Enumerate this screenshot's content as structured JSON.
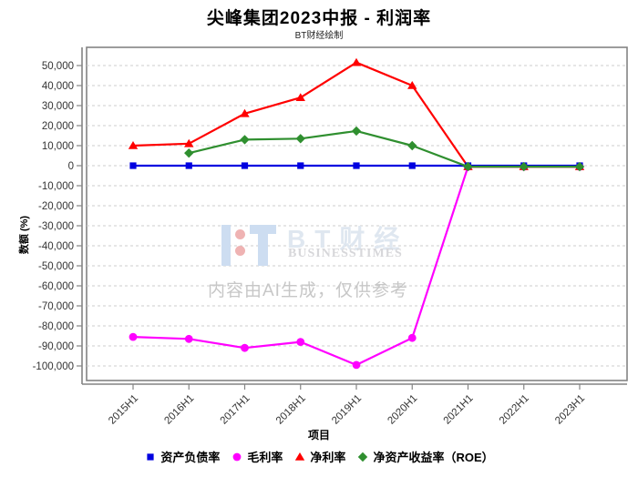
{
  "header": {
    "title": "尖峰集团2023中报 - 利润率",
    "subtitle": "BT财经绘制"
  },
  "watermark": {
    "brand": "BT财经",
    "brand_sub": "BUSINESSTIMES",
    "disclaimer": "内容由AI生成，仅供参考",
    "logo_blue": "#cdddf1",
    "logo_red": "#efb3b3",
    "brand_color": "#dfe7f0",
    "brand_sub_color": "#d7d7da",
    "disclaimer_color": "#c7c7c7"
  },
  "chart_data": {
    "type": "line",
    "title": "尖峰集团2023中报 - 利润率",
    "subtitle": "BT财经绘制",
    "xlabel": "项目",
    "ylabel": "数额 (%)",
    "categories": [
      "2015H1",
      "2016H1",
      "2017H1",
      "2018H1",
      "2019H1",
      "2020H1",
      "2021H1",
      "2022H1",
      "2023H1"
    ],
    "series": [
      {
        "id": "debt-asset-ratio",
        "name": "资产负债率",
        "marker": "square",
        "color": "#0000e0",
        "values": [
          0,
          0,
          0,
          0,
          0,
          0,
          0,
          0,
          0
        ]
      },
      {
        "id": "gross-margin",
        "name": "毛利率",
        "marker": "circle",
        "color": "#ff00ff",
        "values": [
          -85500,
          -86500,
          -91000,
          -88000,
          -99500,
          -86000,
          -500,
          -500,
          -500
        ]
      },
      {
        "id": "net-margin",
        "name": "净利率",
        "marker": "triangle",
        "color": "#ff0000",
        "values": [
          10000,
          11000,
          26000,
          34000,
          51500,
          40000,
          -500,
          -500,
          -500
        ]
      },
      {
        "id": "roe",
        "name": "净资产收益率（ROE）",
        "marker": "diamond",
        "color": "#2f8f2f",
        "values": [
          null,
          6300,
          13000,
          13500,
          17300,
          10000,
          -500,
          -500,
          -500
        ]
      }
    ],
    "ylim": [
      -100000,
      50000
    ],
    "y_tick_step": 10000,
    "y_ticks": [
      "50,000",
      "40,000",
      "30,000",
      "20,000",
      "10,000",
      "0",
      "-10,000",
      "-20,000",
      "-30,000",
      "-40,000",
      "-50,000",
      "-60,000",
      "-70,000",
      "-80,000",
      "-90,000",
      "-100,000"
    ],
    "grid": true,
    "legend_position": "bottom",
    "axis_color": "#848484",
    "grid_color": "#cccccc"
  }
}
